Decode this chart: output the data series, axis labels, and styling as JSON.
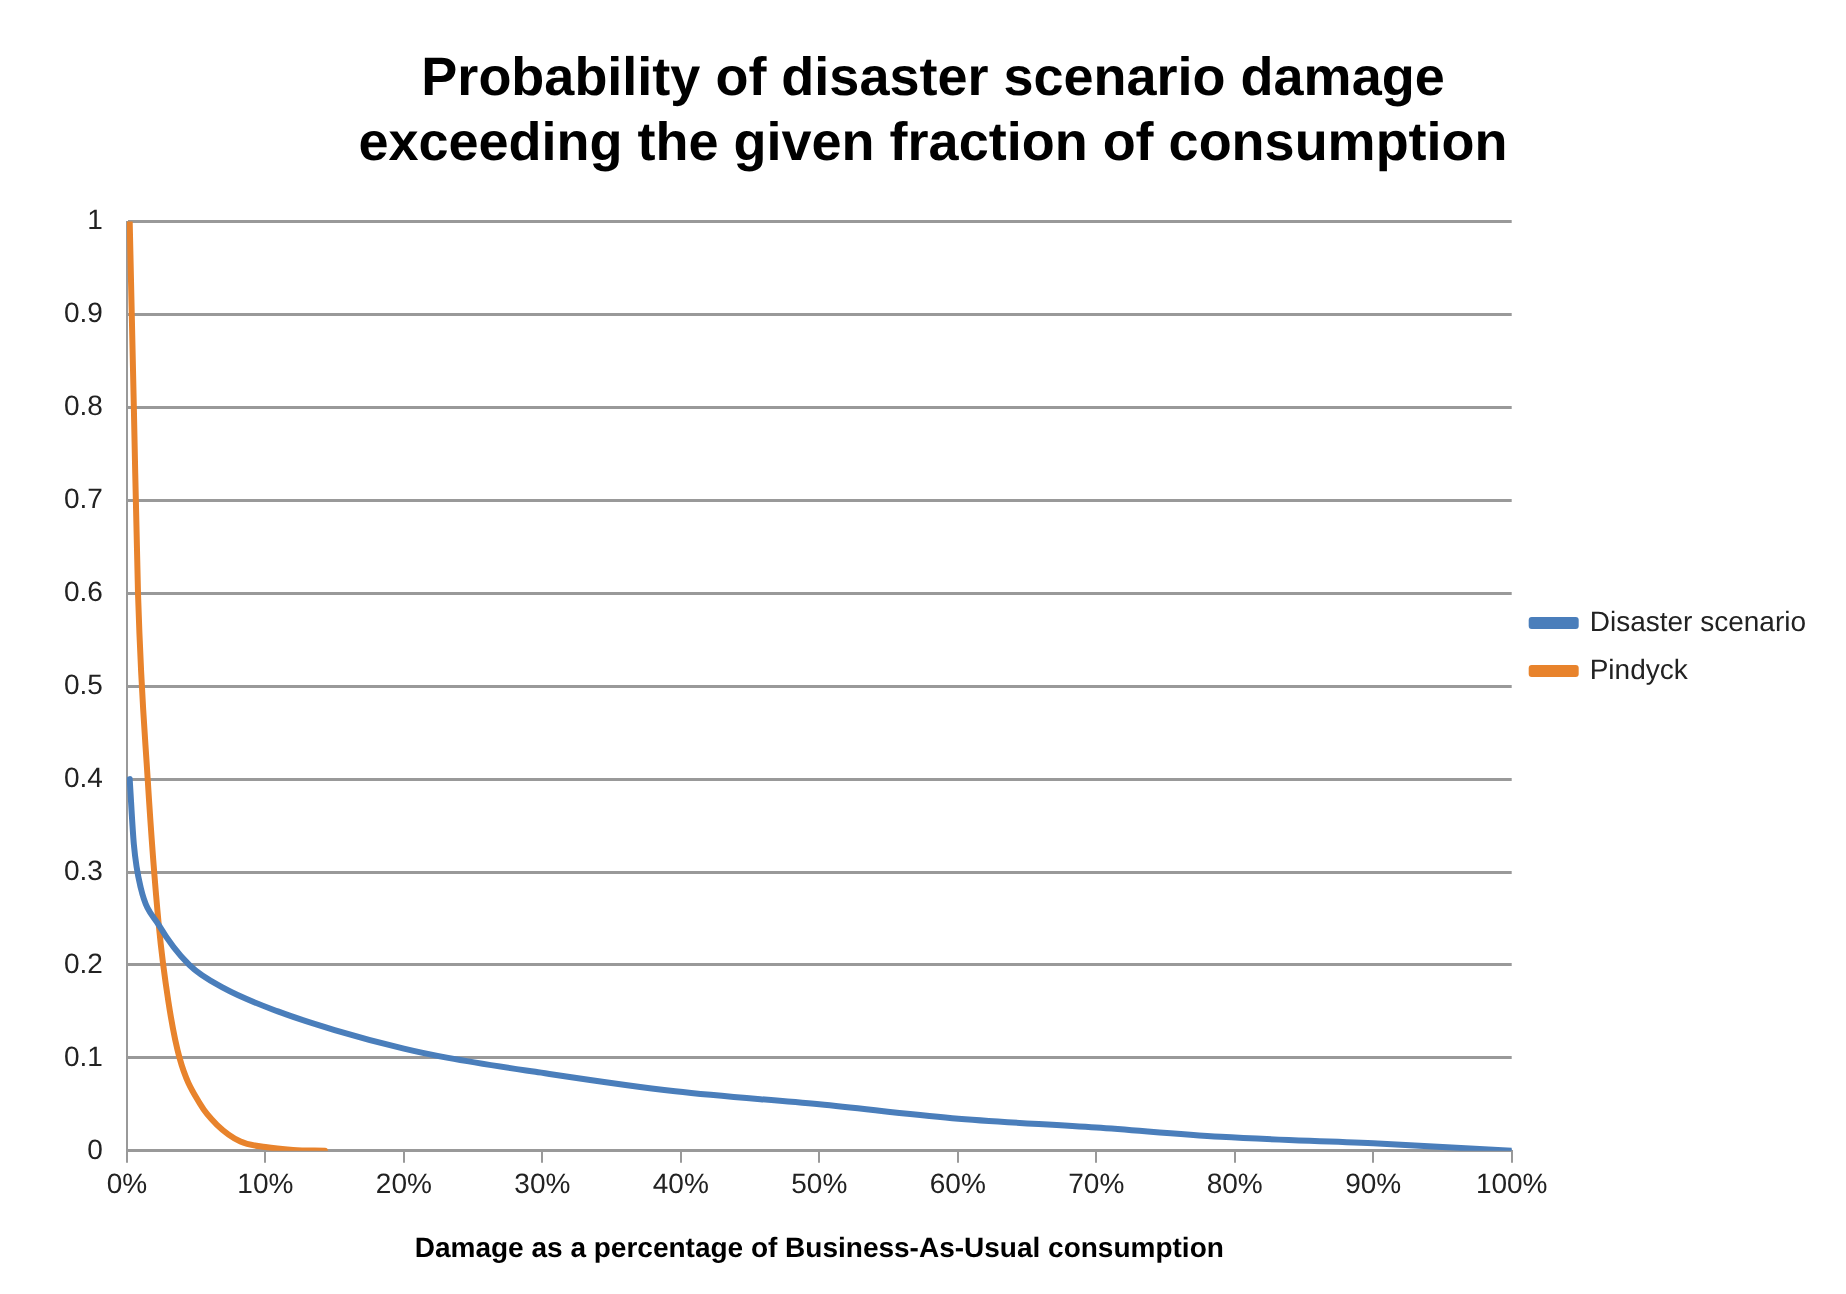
{
  "chart_data": {
    "type": "line",
    "title": "Probability of disaster scenario damage exceeding the given fraction of consumption",
    "xlabel": "Damage as a percentage of Business-As-Usual consumption",
    "xlim": [
      0,
      100
    ],
    "xticks": [
      {
        "value": 0,
        "label": "0%"
      },
      {
        "value": 10,
        "label": "10%"
      },
      {
        "value": 20,
        "label": "20%"
      },
      {
        "value": 30,
        "label": "30%"
      },
      {
        "value": 40,
        "label": "40%"
      },
      {
        "value": 50,
        "label": "50%"
      },
      {
        "value": 60,
        "label": "60%"
      },
      {
        "value": 70,
        "label": "70%"
      },
      {
        "value": 80,
        "label": "80%"
      },
      {
        "value": 90,
        "label": "90%"
      },
      {
        "value": 100,
        "label": "100%"
      }
    ],
    "ylim": [
      0,
      1
    ],
    "yticks": [
      0,
      0.1,
      0.2,
      0.3,
      0.4,
      0.5,
      0.6,
      0.7,
      0.8,
      0.9,
      1
    ],
    "grid": "y",
    "legend": "right",
    "marker": "none",
    "line_style": "solid",
    "series": [
      {
        "name": "Disaster scenario",
        "color": "#4a7ebb",
        "x": [
          0.2,
          0.5,
          1,
          2.3,
          4.5,
          7,
          10.9,
          15,
          20,
          23.2,
          29.5,
          39.6,
          50,
          59.6,
          70,
          79,
          90,
          100
        ],
        "values": [
          0.4,
          0.33,
          0.283,
          0.243,
          0.2,
          0.175,
          0.15,
          0.13,
          0.11,
          0.1,
          0.085,
          0.064,
          0.05,
          0.035,
          0.025,
          0.015,
          0.008,
          0
        ]
      },
      {
        "name": "Pindyck",
        "color": "#e8832c",
        "x": [
          0.2,
          0.5,
          0.8,
          1.5,
          2.3,
          3,
          3.8,
          5.3,
          6.5,
          8.2,
          10,
          12,
          14.3
        ],
        "values": [
          1,
          0.8,
          0.6,
          0.4,
          0.243,
          0.16,
          0.1,
          0.05,
          0.028,
          0.01,
          0.004,
          0.001,
          0
        ]
      }
    ]
  }
}
